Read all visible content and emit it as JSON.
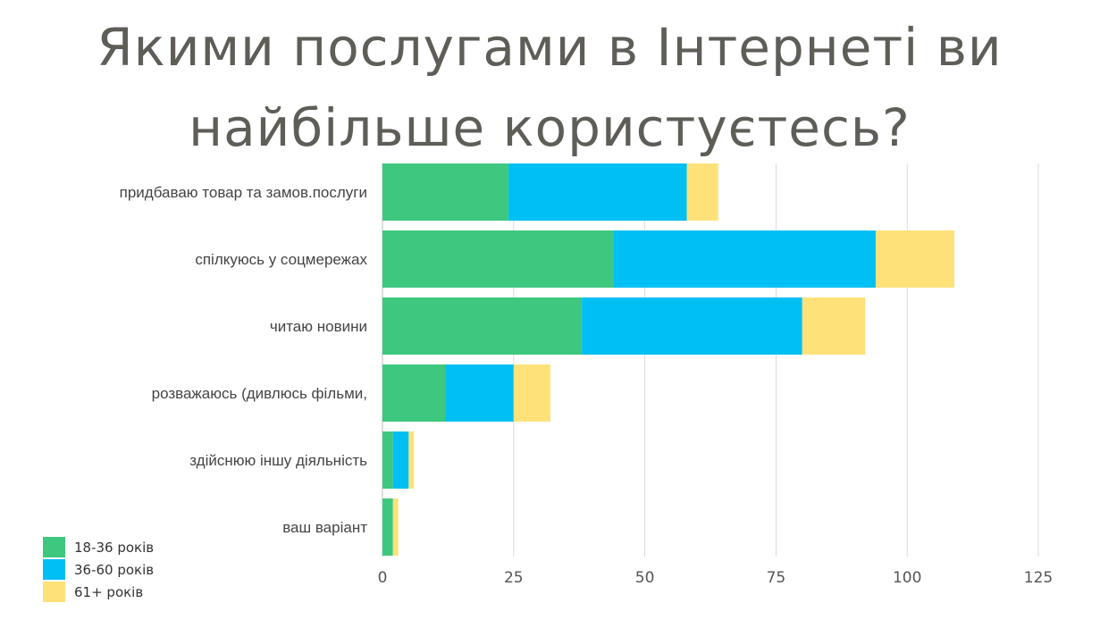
{
  "title": {
    "line1": "Якими послугами в Інтернеті ви",
    "line2": "найбільше користуєтесь?"
  },
  "colors": {
    "series1": "#3ec77f",
    "series2": "#00bff3",
    "series3": "#ffe17a",
    "grid": "#d9d9d9",
    "category_text": "#444444",
    "tick_text": "#555555"
  },
  "legend": {
    "items": [
      {
        "label": "18-36 років",
        "color": "#3ec77f"
      },
      {
        "label": "36-60 років",
        "color": "#00bff3"
      },
      {
        "label": "61+ років",
        "color": "#ffe17a"
      }
    ]
  },
  "chart_data": {
    "type": "bar",
    "orientation": "horizontal",
    "stacked": true,
    "categories": [
      "придбаваю товар та замов.послуги",
      "спілкуюсь у соцмережах",
      "читаю новини",
      "розважаюсь (дивлюсь фільми,",
      "здійснюю іншу діяльність",
      "ваш варіант"
    ],
    "series": [
      {
        "name": "18-36 років",
        "values": [
          24,
          44,
          38,
          12,
          2,
          2
        ]
      },
      {
        "name": "36-60 років",
        "values": [
          34,
          50,
          42,
          13,
          3,
          0
        ]
      },
      {
        "name": "61+ років",
        "values": [
          6,
          15,
          12,
          7,
          1,
          1
        ]
      }
    ],
    "xlim": [
      0,
      125
    ],
    "xticks": [
      "0",
      "25",
      "50",
      "75",
      "100",
      "125"
    ],
    "grid": true,
    "legend_position": "bottom-left"
  }
}
